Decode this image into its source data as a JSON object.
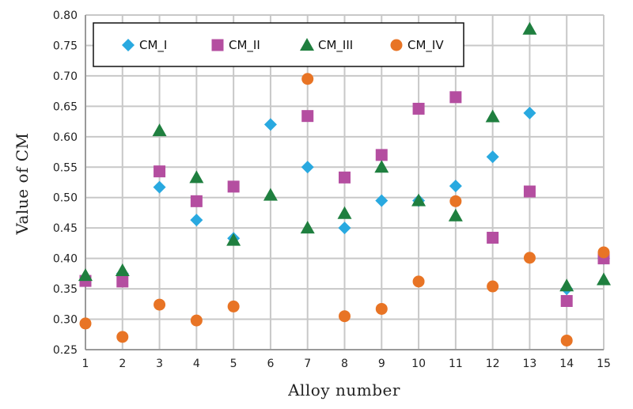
{
  "chart_data": {
    "type": "scatter",
    "xlabel": "Alloy number",
    "ylabel": "Value of CM",
    "x": [
      1,
      2,
      3,
      4,
      5,
      6,
      7,
      8,
      9,
      10,
      11,
      12,
      13,
      14,
      15
    ],
    "xlim": [
      1,
      15
    ],
    "ylim": [
      0.25,
      0.8
    ],
    "y_ticks": [
      "0.25",
      "0.30",
      "0.35",
      "0.40",
      "0.45",
      "0.50",
      "0.55",
      "0.60",
      "0.65",
      "0.70",
      "0.75",
      "0.80"
    ],
    "x_ticks": [
      "1",
      "2",
      "3",
      "4",
      "5",
      "6",
      "7",
      "8",
      "9",
      "10",
      "11",
      "12",
      "13",
      "14",
      "15"
    ],
    "grid": true,
    "legend_position": "top",
    "series": [
      {
        "name": "CM_I",
        "marker": "diamond",
        "color": "#29a9e0",
        "values": [
          0.365,
          0.375,
          0.517,
          0.463,
          0.433,
          0.62,
          0.55,
          0.45,
          0.495,
          0.495,
          0.519,
          0.567,
          0.639,
          0.35,
          0.4
        ]
      },
      {
        "name": "CM_II",
        "marker": "square",
        "color": "#b44ea0",
        "values": [
          0.363,
          0.362,
          0.543,
          0.494,
          0.518,
          null,
          0.634,
          0.533,
          0.57,
          0.646,
          0.665,
          0.434,
          0.51,
          0.33,
          0.4
        ]
      },
      {
        "name": "CM_III",
        "marker": "triangle",
        "color": "#1f7f3f",
        "values": [
          0.372,
          0.38,
          0.61,
          0.533,
          0.43,
          0.504,
          0.45,
          0.474,
          0.55,
          0.495,
          0.47,
          0.633,
          0.777,
          0.355,
          0.365
        ]
      },
      {
        "name": "CM_IV",
        "marker": "circle",
        "color": "#e87425",
        "values": [
          0.293,
          0.271,
          0.324,
          0.298,
          0.321,
          null,
          0.695,
          0.305,
          0.317,
          0.362,
          0.494,
          0.354,
          0.401,
          0.265,
          0.41
        ]
      }
    ]
  }
}
